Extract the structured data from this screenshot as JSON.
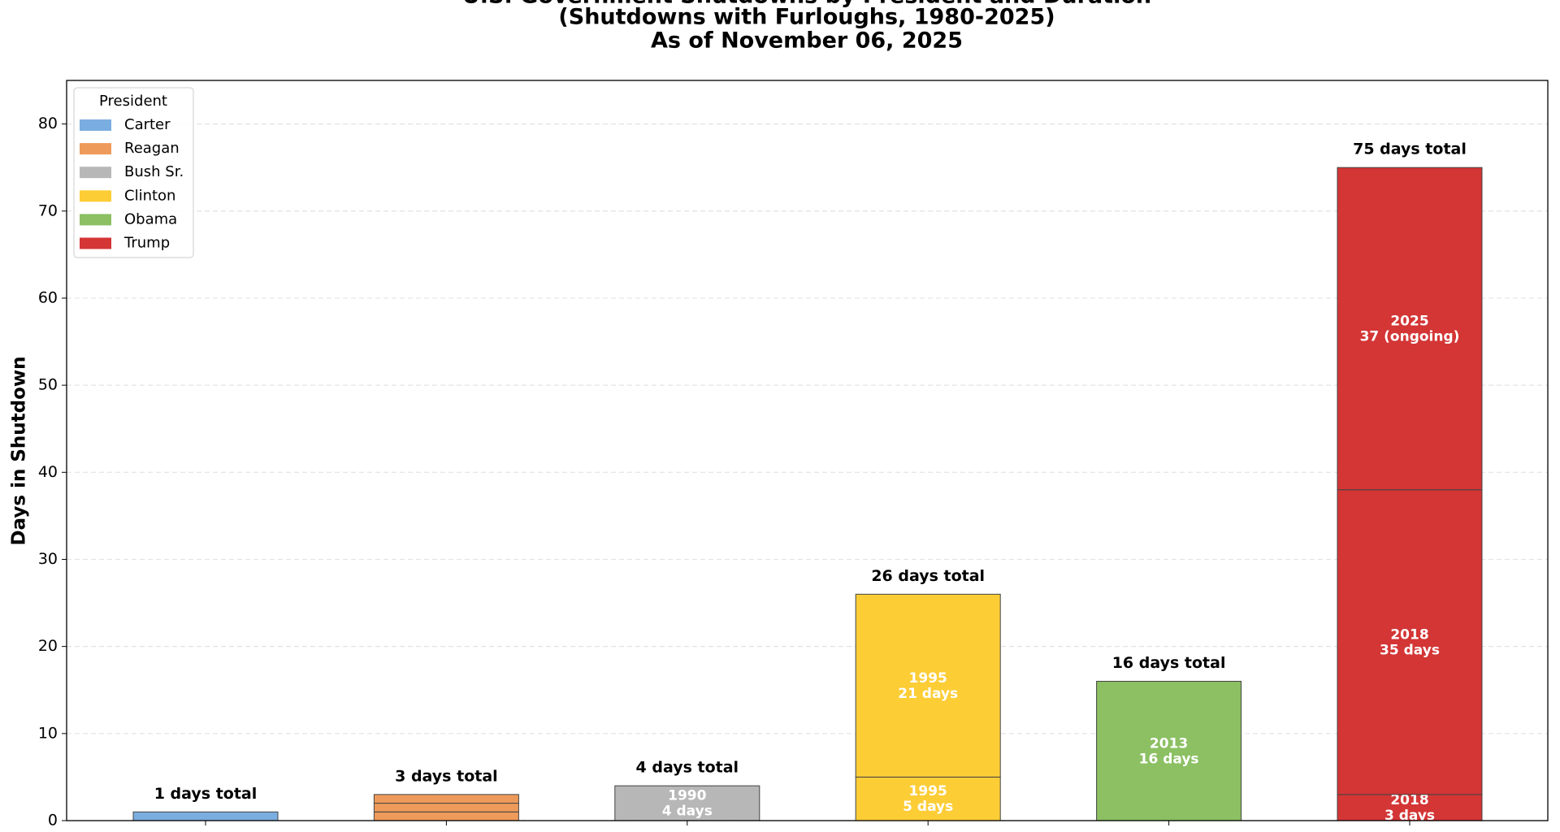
{
  "chart_data": {
    "type": "stacked-bar",
    "title_lines": [
      "U.S. Government Shutdowns by President and Duration",
      "(Shutdowns with Furloughs, 1980-2025)",
      "As of November 06, 2025"
    ],
    "ylabel": "Days in Shutdown",
    "legend_title": "President",
    "legend": "upper left",
    "ylim": [
      0,
      85
    ],
    "yticks": [
      0,
      10,
      20,
      30,
      40,
      50,
      60,
      70,
      80
    ],
    "grid": true,
    "series": [
      {
        "name": "Carter",
        "color": "#7aade0",
        "values": [
          1
        ],
        "total_label": "1 days total"
      },
      {
        "name": "Reagan",
        "color": "#ee9a5a",
        "values": [
          1,
          1,
          1
        ],
        "total_label": "3 days total"
      },
      {
        "name": "Bush Sr.",
        "color": "#b7b7b7",
        "values": [
          4
        ],
        "years": [
          "1990"
        ],
        "value_labels": [
          "4 days"
        ],
        "total_label": "4 days total"
      },
      {
        "name": "Clinton",
        "color": "#fdcd36",
        "values": [
          5,
          21
        ],
        "years": [
          "1995",
          "1995"
        ],
        "value_labels": [
          "5 days",
          "21 days"
        ],
        "total_label": "26 days total"
      },
      {
        "name": "Obama",
        "color": "#8cc063",
        "values": [
          16
        ],
        "years": [
          "2013"
        ],
        "value_labels": [
          "16 days"
        ],
        "total_label": "16 days total"
      },
      {
        "name": "Trump",
        "color": "#d43535",
        "values": [
          3,
          35,
          37
        ],
        "years": [
          "2018",
          "2018",
          "2025"
        ],
        "value_labels": [
          "3 days",
          "35 days",
          "37 (ongoing)"
        ],
        "total_label": "75 days total"
      }
    ]
  }
}
